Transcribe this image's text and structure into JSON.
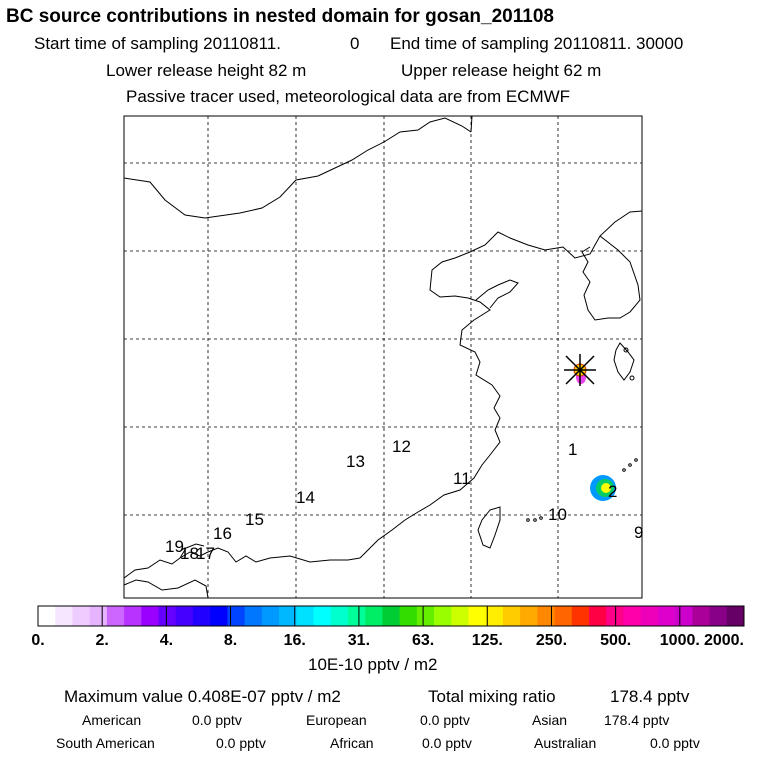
{
  "header": {
    "title": "BC  source contributions in nested domain for gosan_201108",
    "start_label": "Start time of sampling 20110811.",
    "start_hhmmss": "0",
    "end_label": "End time of sampling 20110811. 30000",
    "lower_height": "Lower release height   82 m",
    "upper_height": "Upper release height   62 m",
    "tracer_note": "Passive tracer used, meteorological data are from ECMWF"
  },
  "chart_data": {
    "type": "map",
    "title": "BC  source contributions in nested domain for gosan_201108",
    "source_region_labels": [
      "1",
      "2",
      "9",
      "10",
      "11",
      "12",
      "13",
      "14",
      "15",
      "16",
      "17",
      "18",
      "19"
    ],
    "receptor": "gosan",
    "colorbar": {
      "unit": "10E-10 pptv / m2",
      "tick_labels": [
        "0.",
        "2.",
        "4.",
        "8.",
        "16.",
        "31.",
        "63.",
        "125.",
        "250.",
        "500.",
        "1000.",
        "2000."
      ],
      "colors": [
        "#ffffff",
        "#f7e6ff",
        "#efccff",
        "#e6b3ff",
        "#cc66ff",
        "#b833ff",
        "#9900ff",
        "#6600ff",
        "#4400ff",
        "#2200ff",
        "#0000ff",
        "#0044ff",
        "#0077ff",
        "#0099ff",
        "#00b8ff",
        "#00e0ff",
        "#00ffff",
        "#00ffcc",
        "#00ff99",
        "#00ee66",
        "#00cc33",
        "#33dd00",
        "#66ee00",
        "#99ff00",
        "#ccff00",
        "#ffff00",
        "#ffee00",
        "#ffcc00",
        "#ffaa00",
        "#ff8800",
        "#ff6600",
        "#ff3300",
        "#ff0044",
        "#ff0088",
        "#ff00aa",
        "#ee00bb",
        "#dd00cc",
        "#cc00cc",
        "#aa0099",
        "#880088",
        "#660066"
      ]
    }
  },
  "summary": {
    "max_label": "Maximum value  0.408E-07 pptv / m2",
    "total_label": "Total mixing ratio",
    "total_value": "178.4 pptv",
    "rows": [
      [
        {
          "label": "American",
          "value": "0.0 pptv"
        },
        {
          "label": "European",
          "value": "0.0 pptv"
        },
        {
          "label": "Asian",
          "value": "178.4 pptv"
        }
      ],
      [
        {
          "label": "South American",
          "value": "0.0 pptv"
        },
        {
          "label": "African",
          "value": "0.0 pptv"
        },
        {
          "label": "Australian",
          "value": "0.0 pptv"
        }
      ]
    ]
  }
}
